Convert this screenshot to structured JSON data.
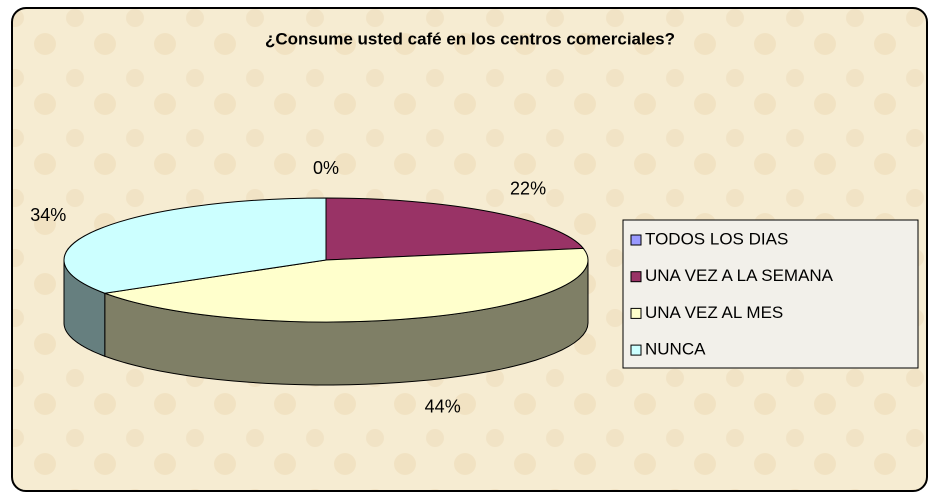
{
  "chart_data": {
    "type": "pie",
    "title": "¿Consume usted café en los centros comerciales?",
    "categories": [
      "TODOS LOS DIAS",
      "UNA VEZ A LA SEMANA",
      "UNA VEZ AL MES",
      "NUNCA"
    ],
    "values": [
      0,
      22,
      44,
      34
    ],
    "value_labels": [
      "0%",
      "22%",
      "44%",
      "34%"
    ],
    "colors": [
      "#9999ff",
      "#993366",
      "#ffffcc",
      "#ccffff"
    ],
    "legend": "right"
  }
}
